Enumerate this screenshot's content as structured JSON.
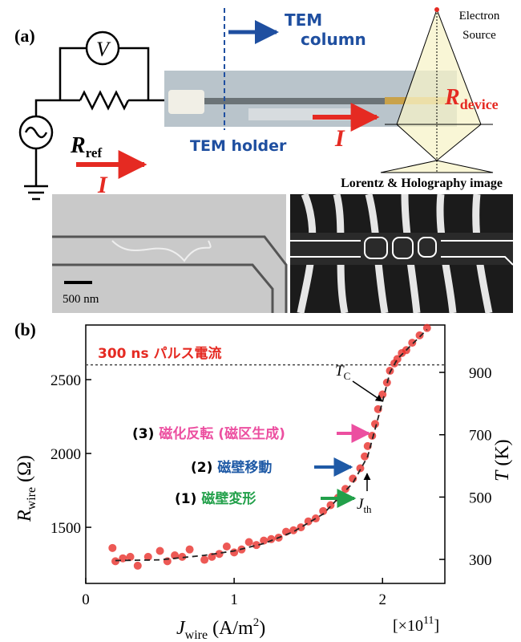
{
  "panel_a": {
    "label": "(a)",
    "voltmeter": "V",
    "r_ref": {
      "symbol": "R",
      "sub": "ref"
    },
    "current_left": "I",
    "tem_column": [
      "TEM",
      "column"
    ],
    "tem_holder": "TEM holder",
    "current_right": "I",
    "r_device": {
      "symbol": "R",
      "sub": "device"
    },
    "electron_source": [
      "Electron",
      "Source"
    ],
    "image_caption": "Lorentz & Holography image",
    "scale_bar": "500 nm"
  },
  "chart_data": {
    "type": "scatter",
    "label": "(b)",
    "annotation": "300 ns パルス電流",
    "color": "#e8302a",
    "xlabel": {
      "symbol": "J",
      "sub": "wire",
      "unit": " (A/m",
      "sup": "2",
      "close": ")"
    },
    "x_multiplier": {
      "text": "[×10",
      "sup": "11",
      "close": "]"
    },
    "ylabel": {
      "symbol": "R",
      "sub": "wire",
      "unit": " (Ω)"
    },
    "y2label": {
      "symbol": "T",
      "unit": " (K)"
    },
    "xlim": [
      0,
      2.42
    ],
    "xticks": [
      0,
      1,
      2
    ],
    "ylim": [
      1120,
      2870
    ],
    "yticks": [
      1500,
      2000,
      2500
    ],
    "y2lim": [
      223,
      1052
    ],
    "y2ticks": [
      300,
      500,
      700,
      900
    ],
    "x": [
      0.18,
      0.2,
      0.25,
      0.3,
      0.35,
      0.42,
      0.5,
      0.55,
      0.6,
      0.65,
      0.7,
      0.8,
      0.85,
      0.9,
      0.95,
      1.0,
      1.05,
      1.1,
      1.15,
      1.2,
      1.25,
      1.3,
      1.35,
      1.4,
      1.45,
      1.5,
      1.55,
      1.6,
      1.65,
      1.7,
      1.75,
      1.8,
      1.85,
      1.88,
      1.9,
      1.93,
      1.95,
      1.97,
      2.0,
      2.03,
      2.05,
      2.08,
      2.1,
      2.13,
      2.16,
      2.2,
      2.25,
      2.3
    ],
    "values": [
      1360,
      1270,
      1290,
      1300,
      1240,
      1300,
      1340,
      1270,
      1310,
      1300,
      1350,
      1280,
      1300,
      1320,
      1370,
      1330,
      1350,
      1400,
      1380,
      1410,
      1420,
      1430,
      1470,
      1480,
      1500,
      1540,
      1560,
      1610,
      1650,
      1700,
      1760,
      1830,
      1900,
      1980,
      2050,
      2120,
      2200,
      2300,
      2400,
      2480,
      2560,
      2610,
      2640,
      2680,
      2700,
      2750,
      2800,
      2850
    ],
    "fit": {
      "x": [
        0.2,
        0.5,
        0.8,
        1.0,
        1.2,
        1.4,
        1.6,
        1.8,
        1.9,
        2.0,
        2.05,
        2.1,
        2.2,
        2.3
      ],
      "values": [
        1275,
        1280,
        1310,
        1340,
        1390,
        1470,
        1590,
        1800,
        1980,
        2350,
        2550,
        2640,
        2740,
        2840
      ]
    },
    "tc_level": 2600,
    "tc_label": {
      "symbol": "T",
      "sub": "C"
    },
    "jth_label": {
      "symbol": "J",
      "sub": "th"
    },
    "steps": [
      {
        "num": "(3)",
        "text": "磁化反転 (磁区生成)",
        "color": "#ec4fa0"
      },
      {
        "num": "(2)",
        "text": "磁壁移動",
        "color": "#1f5aa6"
      },
      {
        "num": "(1)",
        "text": "磁壁変形",
        "color": "#22a04a"
      }
    ]
  }
}
